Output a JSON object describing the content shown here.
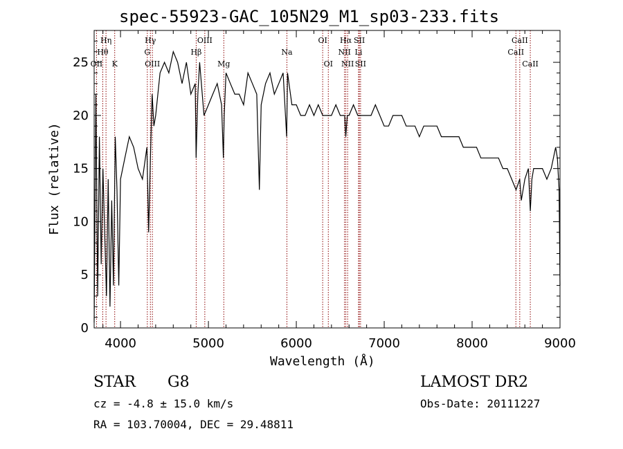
{
  "chart_data": {
    "type": "line",
    "title": "spec-55923-GAC_105N29_M1_sp03-233.fits",
    "xlabel": "Wavelength (Å)",
    "ylabel": "Flux (relative)",
    "xlim": [
      3700,
      9000
    ],
    "ylim": [
      0,
      28
    ],
    "xticks": [
      4000,
      5000,
      6000,
      7000,
      8000,
      9000
    ],
    "yticks": [
      0,
      5,
      10,
      15,
      20,
      25
    ],
    "grid": false,
    "line_color": "#000000",
    "marker_color": "#8b0000",
    "series": [
      {
        "x": [
          3700,
          3720,
          3740,
          3760,
          3780,
          3800,
          3820,
          3840,
          3860,
          3880,
          3900,
          3920,
          3940,
          3960,
          3980,
          4000,
          4050,
          4100,
          4150,
          4200,
          4250,
          4300,
          4320,
          4340,
          4360,
          4380,
          4400,
          4450,
          4500,
          4550,
          4600,
          4650,
          4700,
          4750,
          4800,
          4850,
          4860,
          4880,
          4900,
          4950,
          5000,
          5050,
          5100,
          5150,
          5170,
          5180,
          5200,
          5250,
          5300,
          5350,
          5400,
          5450,
          5500,
          5550,
          5580,
          5600,
          5650,
          5700,
          5750,
          5800,
          5850,
          5890,
          5900,
          5950,
          6000,
          6050,
          6100,
          6150,
          6200,
          6250,
          6300,
          6350,
          6400,
          6450,
          6500,
          6550,
          6563,
          6580,
          6600,
          6650,
          6700,
          6750,
          6800,
          6850,
          6900,
          6950,
          7000,
          7050,
          7100,
          7150,
          7200,
          7250,
          7300,
          7350,
          7400,
          7450,
          7500,
          7550,
          7600,
          7650,
          7700,
          7750,
          7800,
          7850,
          7900,
          7950,
          8000,
          8050,
          8100,
          8150,
          8200,
          8250,
          8300,
          8350,
          8400,
          8450,
          8500,
          8542,
          8560,
          8600,
          8640,
          8662,
          8680,
          8700,
          8750,
          8800,
          8850,
          8900,
          8950,
          8970,
          8990,
          9000
        ],
        "y": [
          0.5,
          22,
          3,
          18,
          6,
          15,
          9,
          3,
          14,
          2,
          12,
          4,
          18,
          13,
          4,
          14,
          16,
          18,
          17,
          15,
          14,
          17,
          9,
          16,
          22,
          19,
          20,
          24,
          25,
          24,
          26,
          25,
          23,
          25,
          22,
          23,
          16,
          22,
          25,
          20,
          21,
          22,
          23,
          21,
          16,
          20,
          24,
          23,
          22,
          22,
          21,
          24,
          23,
          22,
          13,
          21,
          23,
          24,
          22,
          23,
          24,
          18,
          24,
          21,
          21,
          20,
          20,
          21,
          20,
          21,
          20,
          20,
          20,
          21,
          20,
          20,
          18,
          20,
          20,
          21,
          20,
          20,
          20,
          20,
          21,
          20,
          19,
          19,
          20,
          20,
          20,
          19,
          19,
          19,
          18,
          19,
          19,
          19,
          19,
          18,
          18,
          18,
          18,
          18,
          17,
          17,
          17,
          17,
          16,
          16,
          16,
          16,
          16,
          15,
          15,
          14,
          13,
          14,
          12,
          14,
          15,
          11,
          14,
          15,
          15,
          15,
          14,
          15,
          17,
          16,
          13,
          4
        ]
      }
    ],
    "lines": [
      {
        "label": "OII",
        "x": 3727,
        "row": 3
      },
      {
        "label": "Hθ",
        "x": 3798,
        "row": 2
      },
      {
        "label": "Hη",
        "x": 3835,
        "row": 1
      },
      {
        "label": "K",
        "x": 3934,
        "row": 3
      },
      {
        "label": "Hγ",
        "x": 4340,
        "row": 1
      },
      {
        "label": "G",
        "x": 4305,
        "row": 2
      },
      {
        "label": "OIII",
        "x": 4363,
        "row": 3
      },
      {
        "label": "Hβ",
        "x": 4861,
        "row": 2
      },
      {
        "label": "OIII",
        "x": 4959,
        "row": 1
      },
      {
        "label": "Mg",
        "x": 5175,
        "row": 3
      },
      {
        "label": "Na",
        "x": 5893,
        "row": 2
      },
      {
        "label": "OI",
        "x": 6300,
        "row": 1
      },
      {
        "label": "OI",
        "x": 6364,
        "row": 3
      },
      {
        "label": "Hα",
        "x": 6563,
        "row": 1
      },
      {
        "label": "NII",
        "x": 6548,
        "row": 2
      },
      {
        "label": "NII",
        "x": 6584,
        "row": 3
      },
      {
        "label": "SII",
        "x": 6717,
        "row": 1
      },
      {
        "label": "Li",
        "x": 6708,
        "row": 2
      },
      {
        "label": "SII",
        "x": 6731,
        "row": 3
      },
      {
        "label": "CaII",
        "x": 8542,
        "row": 1
      },
      {
        "label": "CaII",
        "x": 8498,
        "row": 2
      },
      {
        "label": "CaII",
        "x": 8662,
        "row": 3
      }
    ]
  },
  "info": {
    "class": "STAR",
    "subclass": "G8",
    "survey": "LAMOST DR2",
    "cz": "cz = -4.8 ± 15.0 km/s",
    "obs_date": "Obs-Date: 20111227",
    "coords": "RA = 103.70004, DEC =  29.48811"
  }
}
